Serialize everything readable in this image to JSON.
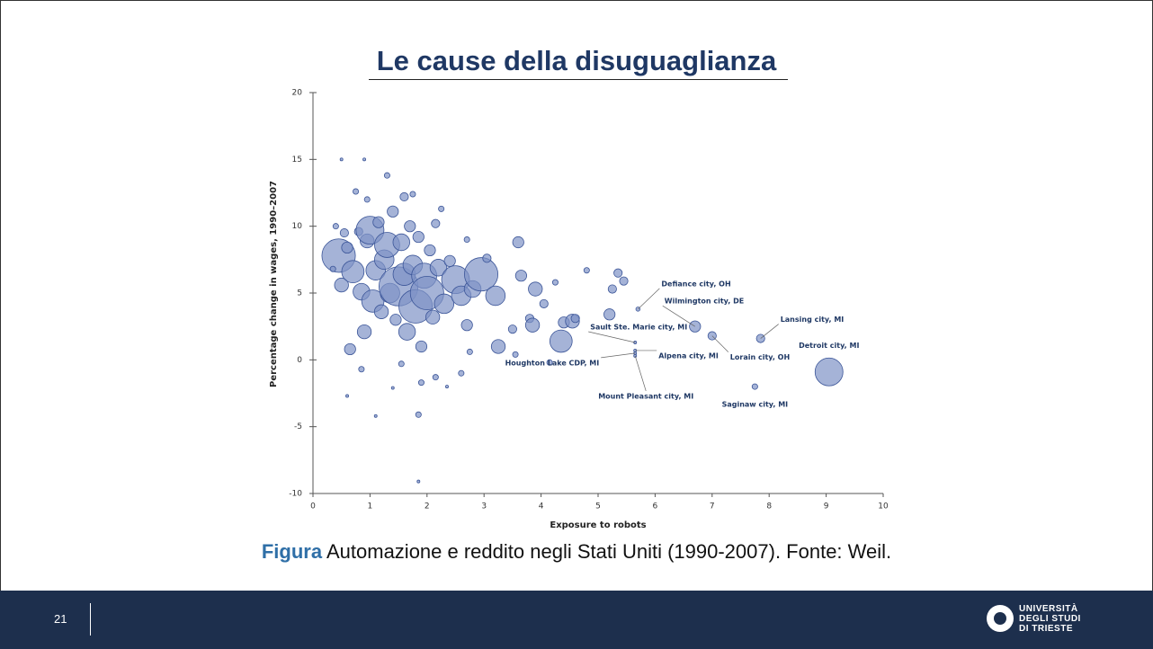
{
  "slide": {
    "title": "Le cause della disuguaglianza",
    "caption": {
      "lead": "Figura",
      "text": "Automazione e reddito negli Stati Uniti (1990-2007). Fonte: Weil."
    },
    "footer": {
      "page": "21",
      "logo": [
        "UNIVERSITÀ",
        "DEGLI STUDI",
        "DI TRIESTE"
      ]
    }
  },
  "chart_data": {
    "type": "scatter",
    "x_label": "Exposure to robots",
    "y_label": "Percentage change in wages, 1990–2007",
    "xlim": [
      0,
      10
    ],
    "xticks": [
      0,
      1,
      2,
      3,
      4,
      5,
      6,
      7,
      8,
      9,
      10
    ],
    "ylim": [
      -10,
      20
    ],
    "yticks": [
      -10,
      -5,
      0,
      5,
      10,
      15,
      20
    ],
    "color": "#7f93c6",
    "edge_color": "#3b5598",
    "points": {
      "x": [
        0.45,
        0.5,
        0.55,
        0.6,
        0.65,
        0.7,
        0.8,
        0.85,
        0.9,
        0.95,
        1.0,
        1.05,
        1.1,
        1.15,
        1.2,
        1.25,
        1.3,
        1.35,
        1.4,
        1.45,
        1.5,
        1.55,
        1.6,
        1.65,
        1.7,
        1.75,
        1.8,
        1.85,
        1.9,
        1.95,
        2.0,
        2.05,
        2.1,
        2.15,
        2.2,
        2.3,
        2.4,
        2.5,
        2.6,
        2.7,
        2.8,
        2.95,
        3.05,
        3.2,
        3.25,
        3.5,
        3.6,
        3.65,
        3.8,
        3.85,
        3.9,
        4.05,
        4.35,
        4.4,
        4.55,
        4.6,
        5.2,
        5.25,
        5.35,
        5.45,
        4.8,
        4.25,
        0.5,
        0.9,
        0.75,
        1.3,
        1.75,
        1.85,
        1.85,
        1.1,
        1.9,
        2.15,
        1.55,
        2.6,
        0.85,
        0.6,
        1.4,
        2.35,
        3.55,
        4.15,
        2.75,
        0.4,
        0.35,
        0.95,
        1.6,
        2.25,
        2.7
      ],
      "y": [
        7.8,
        5.6,
        9.5,
        8.4,
        0.8,
        6.6,
        9.6,
        5.1,
        2.1,
        8.9,
        9.7,
        4.4,
        6.7,
        10.3,
        3.6,
        7.5,
        8.6,
        5.0,
        11.1,
        3.0,
        5.5,
        8.8,
        6.4,
        2.1,
        10.0,
        7.1,
        4.0,
        9.2,
        1.0,
        6.3,
        5.0,
        8.2,
        3.2,
        10.2,
        6.9,
        4.2,
        7.4,
        6.0,
        4.8,
        2.6,
        5.3,
        6.4,
        7.6,
        4.8,
        1.0,
        2.3,
        8.8,
        6.3,
        3.1,
        2.6,
        5.3,
        4.2,
        1.4,
        2.8,
        2.9,
        3.1,
        3.4,
        5.3,
        6.5,
        5.9,
        6.7,
        5.8,
        15.0,
        15.0,
        12.6,
        13.8,
        12.4,
        -9.1,
        -4.1,
        -4.2,
        -1.7,
        -1.3,
        -0.3,
        -1.0,
        -0.7,
        -2.7,
        -2.1,
        -2.0,
        0.4,
        -0.2,
        0.6,
        10.0,
        6.8,
        12.0,
        12.2,
        11.3,
        9.0
      ],
      "sizes": [
        12,
        5,
        3,
        4,
        4,
        8,
        3,
        6,
        5,
        5,
        10,
        8,
        7,
        4,
        5,
        7,
        9,
        7,
        4,
        4,
        14,
        6,
        8,
        6,
        4,
        7,
        12,
        4,
        4,
        9,
        12,
        4,
        5,
        3,
        6,
        7,
        4,
        10,
        7,
        4,
        6,
        12,
        3,
        7,
        5,
        3,
        4,
        4,
        3,
        5,
        5,
        3,
        8,
        4,
        5,
        3,
        4,
        3,
        3,
        3,
        2,
        2,
        1,
        1,
        2,
        2,
        2,
        1,
        2,
        1,
        2,
        2,
        2,
        2,
        2,
        1,
        1,
        1,
        2,
        2,
        2,
        2,
        2,
        2,
        3,
        2,
        2
      ]
    },
    "annotations": [
      {
        "label": "Defiance city, OH",
        "x": 5.7,
        "y": 3.8,
        "size": 1.5
      },
      {
        "label": "Wilmington city, DE",
        "x": 6.7,
        "y": 2.5,
        "size": 4
      },
      {
        "label": "Sault Ste. Marie city, MI",
        "x": 5.65,
        "y": 1.3,
        "size": 1
      },
      {
        "label": "Lansing city, MI",
        "x": 7.85,
        "y": 1.6,
        "size": 3
      },
      {
        "label": "Lorain city, OH",
        "x": 7.0,
        "y": 1.8,
        "size": 3
      },
      {
        "label": "Detroit city, MI",
        "x": 9.05,
        "y": -0.9,
        "size": 10
      },
      {
        "label": "Houghton Lake CDP, MI",
        "x": 5.65,
        "y": 0.5,
        "size": 1
      },
      {
        "label": "Alpena city, MI",
        "x": 5.65,
        "y": 0.7,
        "size": 1
      },
      {
        "label": "Mount Pleasant city, MI",
        "x": 5.65,
        "y": 0.3,
        "size": 1
      },
      {
        "label": "Saginaw city, MI",
        "x": 7.75,
        "y": -2.0,
        "size": 2
      }
    ]
  }
}
